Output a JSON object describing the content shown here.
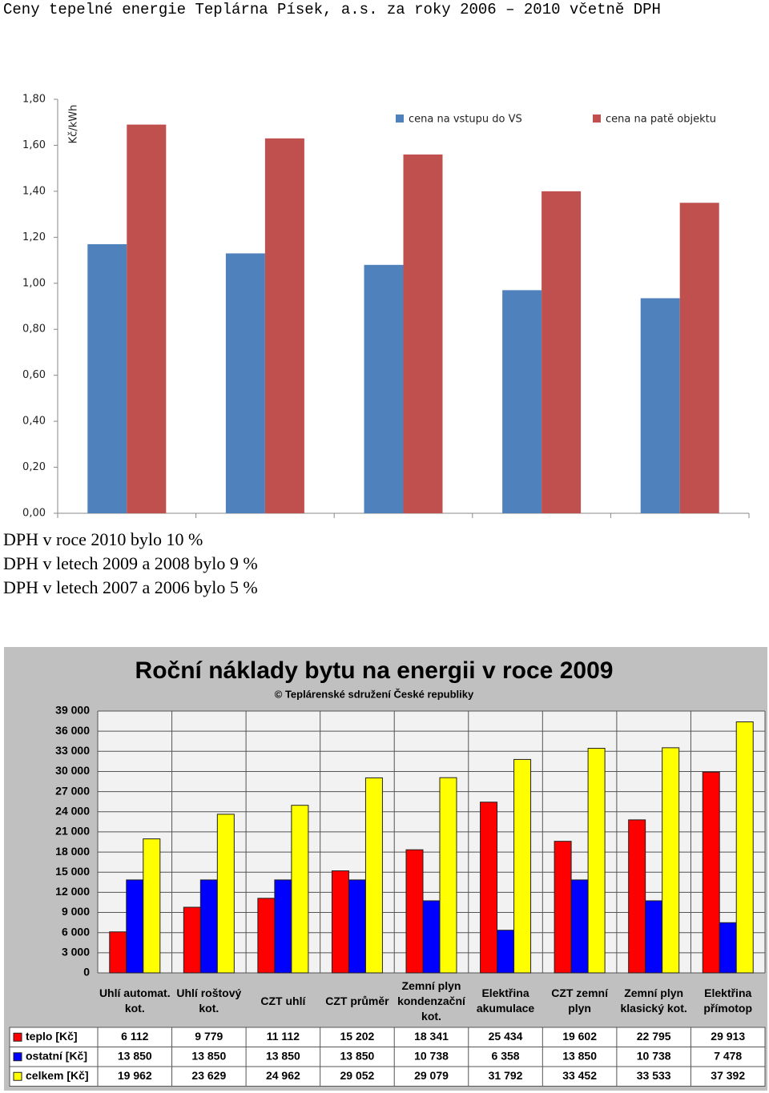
{
  "title": "Ceny tepelné energie Teplárna Písek, a.s. za roky 2006 – 2010 včetně DPH",
  "notes": [
    "DPH v roce  2010 bylo  10 %",
    "DPH v letech 2009 a 2008 bylo 9 %",
    "DPH v letech 2007 a 2006 bylo 5 %"
  ],
  "chart_data": [
    {
      "type": "bar",
      "y_label": "Kč/kWh",
      "categories": [
        null,
        null,
        null,
        null,
        null
      ],
      "series": [
        {
          "name": "cena na vstupu do VS",
          "color": "#4f81bd",
          "values": [
            1.17,
            1.13,
            1.08,
            0.97,
            0.935
          ]
        },
        {
          "name": "cena na patě objektu",
          "color": "#c0504d",
          "values": [
            1.69,
            1.63,
            1.56,
            1.4,
            1.35
          ]
        }
      ],
      "ylim": [
        0,
        1.8
      ],
      "yticks": [
        {
          "value": 0,
          "label": "0,00"
        },
        {
          "value": 0.2,
          "label": "0,20"
        },
        {
          "value": 0.4,
          "label": "0,40"
        },
        {
          "value": 0.6,
          "label": "0,60"
        },
        {
          "value": 0.8,
          "label": "0,80"
        },
        {
          "value": 1.0,
          "label": "1,00"
        },
        {
          "value": 1.2,
          "label": "1,20"
        },
        {
          "value": 1.4,
          "label": "1,40"
        },
        {
          "value": 1.6,
          "label": "1,60"
        },
        {
          "value": 1.8,
          "label": "1,80"
        }
      ],
      "grid": false,
      "legend": "top-right"
    },
    {
      "type": "bar",
      "title": "Roční náklady bytu na energii v roce 2009",
      "subtitle": "© Teplárenské sdružení České republiky",
      "categories": [
        "Uhlí automat. kot.",
        "Uhlí roštový kot.",
        "CZT uhlí",
        "CZT průměr",
        "Zemní plyn kondenzační kot.",
        "Elektřina akumulace",
        "CZT zemní plyn",
        "Zemní plyn klasický kot.",
        "Elektřina přímotop"
      ],
      "series": [
        {
          "name": "teplo [Kč]",
          "color": "#ff0000",
          "values": [
            6112,
            9779,
            11112,
            15202,
            18341,
            25434,
            19602,
            22795,
            29913
          ],
          "value_labels": [
            "6 112",
            "9 779",
            "11 112",
            "15 202",
            "18 341",
            "25 434",
            "19 602",
            "22 795",
            "29 913"
          ]
        },
        {
          "name": "ostatní [Kč]",
          "color": "#0000ff",
          "values": [
            13850,
            13850,
            13850,
            13850,
            10738,
            6358,
            13850,
            10738,
            7478
          ],
          "value_labels": [
            "13 850",
            "13 850",
            "13 850",
            "13 850",
            "10 738",
            "6 358",
            "13 850",
            "10 738",
            "7 478"
          ]
        },
        {
          "name": "celkem [Kč]",
          "color": "#ffff00",
          "values": [
            19962,
            23629,
            24962,
            29052,
            29079,
            31792,
            33452,
            33533,
            37392
          ],
          "value_labels": [
            "19 962",
            "23 629",
            "24 962",
            "29 052",
            "29 079",
            "31 792",
            "33 452",
            "33 533",
            "37 392"
          ]
        }
      ],
      "ylim": [
        0,
        39000
      ],
      "yticks": [
        0,
        {
          "value": 3000,
          "label": "3 000"
        },
        {
          "value": 6000,
          "label": "6 000"
        },
        {
          "value": 9000,
          "label": "9 000"
        },
        {
          "value": 12000,
          "label": "12 000"
        },
        {
          "value": 15000,
          "label": "15 000"
        },
        {
          "value": 18000,
          "label": "18 000"
        },
        {
          "value": 21000,
          "label": "21 000"
        },
        {
          "value": 24000,
          "label": "24 000"
        },
        {
          "value": 27000,
          "label": "27 000"
        },
        {
          "value": 30000,
          "label": "30 000"
        },
        {
          "value": 33000,
          "label": "33 000"
        },
        {
          "value": 36000,
          "label": "36 000"
        },
        {
          "value": 39000,
          "label": "39 000"
        }
      ],
      "grid": true
    }
  ]
}
